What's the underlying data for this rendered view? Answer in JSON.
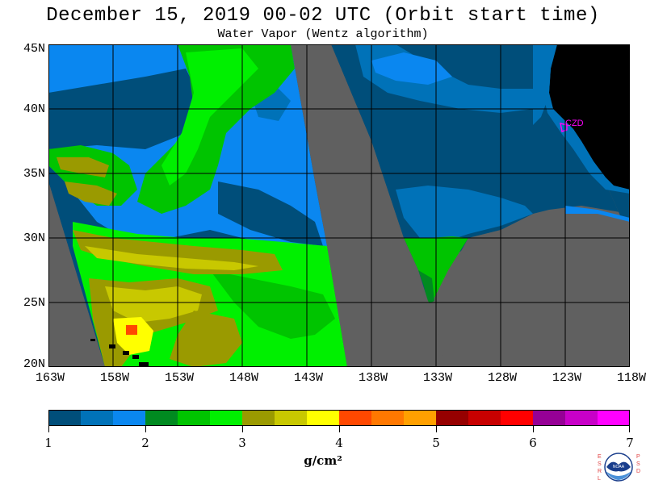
{
  "title": "December 15, 2019  00-02 UTC  (Orbit start time)",
  "subtitle": "Water Vapor (Wentz algorithm)",
  "lat_labels": [
    "45N",
    "40N",
    "35N",
    "30N",
    "25N",
    "20N"
  ],
  "lon_labels": [
    "163W",
    "158W",
    "153W",
    "148W",
    "143W",
    "138W",
    "133W",
    "128W",
    "123W",
    "118W"
  ],
  "map_annotation": "CZD",
  "colorbar": {
    "tick_labels": [
      "1",
      "2",
      "3",
      "4",
      "5",
      "6",
      "7"
    ],
    "unit": "g/cm²",
    "colors": [
      "#004e7a",
      "#0072b8",
      "#0a87f0",
      "#008a20",
      "#00c400",
      "#00f000",
      "#9a9a00",
      "#c8c800",
      "#ffff00",
      "#ff4800",
      "#ff7800",
      "#ffa000",
      "#960000",
      "#c80000",
      "#ff0000",
      "#960096",
      "#c800c8",
      "#ff00ff"
    ]
  },
  "logo": {
    "left_letters": "ESRL",
    "right_letters": "PSD",
    "center_text": "NOAA"
  },
  "colors": {
    "no_data": "#606060",
    "land": "#000000",
    "grid": "#000000",
    "marker": "#ff00ff"
  }
}
